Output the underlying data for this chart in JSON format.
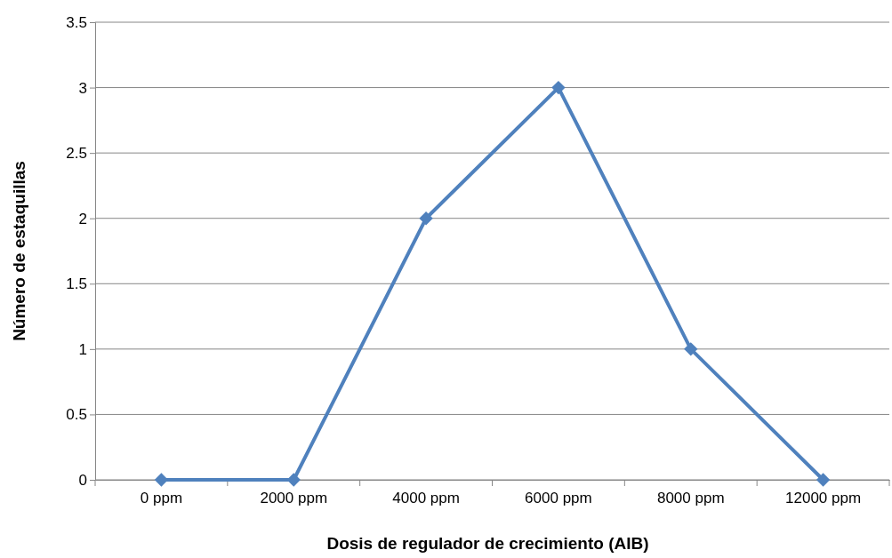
{
  "chart_data": {
    "type": "line",
    "xlabel": "Dosis de regulador de crecimiento (AIB)",
    "ylabel": "Número de estaquillas",
    "categories": [
      "0 ppm",
      "2000 ppm",
      "4000 ppm",
      "6000 ppm",
      "8000 ppm",
      "12000 ppm"
    ],
    "series": [
      {
        "color": "#4f81bd",
        "values": [
          0,
          0,
          2,
          3,
          1,
          0
        ]
      }
    ],
    "ylim": [
      0,
      3.5
    ],
    "yticks": [
      0,
      0.5,
      1,
      1.5,
      2,
      2.5,
      3,
      3.5
    ],
    "grid": "y",
    "marker": "diamond",
    "line_style": "solid"
  }
}
